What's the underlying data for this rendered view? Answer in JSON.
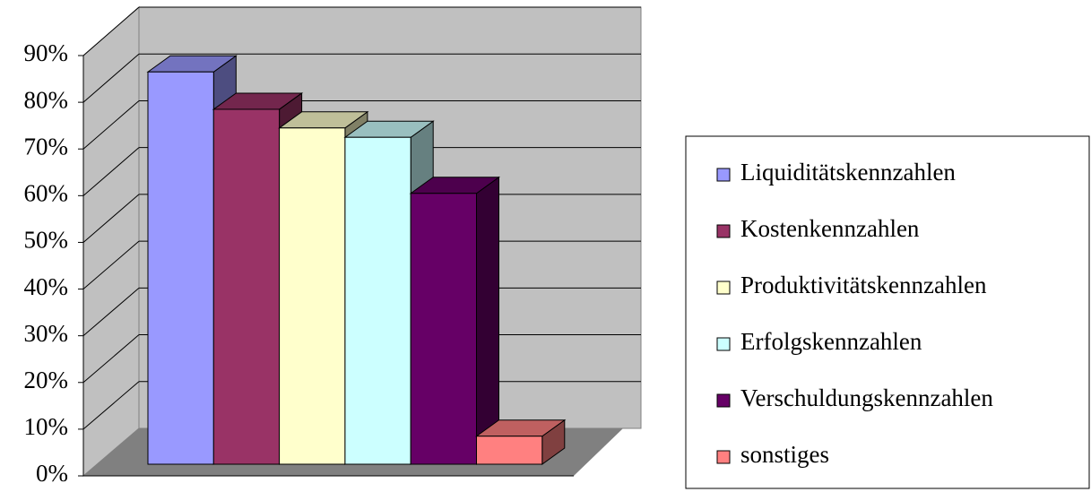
{
  "chart_data": {
    "type": "bar3d",
    "series": [
      {
        "name": "Liquiditätskennzahlen",
        "color": "#9999ff",
        "values": [
          84
        ]
      },
      {
        "name": "Kostenkennzahlen",
        "color": "#993366",
        "values": [
          76
        ]
      },
      {
        "name": "Produktivitätskennzahlen",
        "color": "#ffffcc",
        "values": [
          72
        ]
      },
      {
        "name": "Erfolgskennzahlen",
        "color": "#ccffff",
        "values": [
          70
        ]
      },
      {
        "name": "Verschuldungskennzahlen",
        "color": "#660066",
        "values": [
          58
        ]
      },
      {
        "name": "sonstiges",
        "color": "#ff8080",
        "values": [
          6
        ]
      }
    ],
    "ylim": [
      0,
      90
    ],
    "yticks": [
      {
        "value": 0,
        "label": "0%"
      },
      {
        "value": 10,
        "label": "10%"
      },
      {
        "value": 20,
        "label": "20%"
      },
      {
        "value": 30,
        "label": "30%"
      },
      {
        "value": 40,
        "label": "40%"
      },
      {
        "value": 50,
        "label": "50%"
      },
      {
        "value": 60,
        "label": "60%"
      },
      {
        "value": 70,
        "label": "70%"
      },
      {
        "value": 80,
        "label": "80%"
      },
      {
        "value": 90,
        "label": "90%"
      }
    ],
    "grid": true,
    "legend": "right"
  }
}
